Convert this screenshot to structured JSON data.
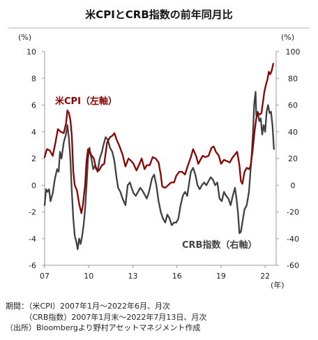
{
  "chart_data": {
    "type": "line",
    "title": "米CPIとCRB指数の前年同月比",
    "left_axis": {
      "unit": "(%)",
      "ylim": [
        -6,
        10
      ],
      "ticks": [
        "10",
        "8",
        "6",
        "4",
        "2",
        "0",
        "-2",
        "-4",
        "-6"
      ]
    },
    "right_axis": {
      "unit": "(%)",
      "ylim": [
        -60,
        100
      ],
      "ticks": [
        "100",
        "80",
        "60",
        "40",
        "20",
        "0",
        "-20",
        "-40",
        "-60"
      ]
    },
    "x_axis": {
      "ticks": [
        "07",
        "10",
        "13",
        "16",
        "19",
        "22"
      ],
      "unit": "(年)",
      "xlim": [
        2007.0,
        2022.75
      ]
    },
    "series": [
      {
        "name": "米CPI（左軸）",
        "axis": "left",
        "color": "#8b0000",
        "points": [
          [
            2007.0,
            2.1
          ],
          [
            2007.15,
            2.7
          ],
          [
            2007.35,
            2.6
          ],
          [
            2007.55,
            2.2
          ],
          [
            2007.7,
            3.0
          ],
          [
            2007.9,
            4.2
          ],
          [
            2008.1,
            4.0
          ],
          [
            2008.3,
            3.9
          ],
          [
            2008.45,
            4.6
          ],
          [
            2008.55,
            5.6
          ],
          [
            2008.65,
            5.4
          ],
          [
            2008.75,
            4.9
          ],
          [
            2008.85,
            3.7
          ],
          [
            2008.95,
            1.0
          ],
          [
            2009.05,
            0.0
          ],
          [
            2009.2,
            -0.4
          ],
          [
            2009.35,
            -1.4
          ],
          [
            2009.5,
            -2.1
          ],
          [
            2009.6,
            -1.5
          ],
          [
            2009.75,
            0.0
          ],
          [
            2009.85,
            1.8
          ],
          [
            2009.95,
            2.7
          ],
          [
            2010.15,
            2.3
          ],
          [
            2010.35,
            2.0
          ],
          [
            2010.5,
            1.2
          ],
          [
            2010.7,
            1.1
          ],
          [
            2010.9,
            1.5
          ],
          [
            2011.05,
            1.6
          ],
          [
            2011.25,
            3.2
          ],
          [
            2011.45,
            3.6
          ],
          [
            2011.6,
            3.7
          ],
          [
            2011.75,
            3.9
          ],
          [
            2011.9,
            3.4
          ],
          [
            2012.1,
            2.9
          ],
          [
            2012.3,
            2.3
          ],
          [
            2012.5,
            1.4
          ],
          [
            2012.7,
            2.0
          ],
          [
            2012.9,
            1.8
          ],
          [
            2013.05,
            1.6
          ],
          [
            2013.25,
            1.1
          ],
          [
            2013.45,
            1.6
          ],
          [
            2013.6,
            2.0
          ],
          [
            2013.8,
            1.2
          ],
          [
            2013.95,
            1.5
          ],
          [
            2014.15,
            1.5
          ],
          [
            2014.35,
            2.1
          ],
          [
            2014.55,
            2.0
          ],
          [
            2014.75,
            1.7
          ],
          [
            2014.9,
            0.8
          ],
          [
            2015.0,
            -0.1
          ],
          [
            2015.2,
            -0.2
          ],
          [
            2015.4,
            0.0
          ],
          [
            2015.6,
            0.2
          ],
          [
            2015.8,
            0.2
          ],
          [
            2015.95,
            0.7
          ],
          [
            2016.15,
            1.0
          ],
          [
            2016.35,
            1.0
          ],
          [
            2016.55,
            0.8
          ],
          [
            2016.75,
            1.5
          ],
          [
            2016.95,
            2.1
          ],
          [
            2017.1,
            2.7
          ],
          [
            2017.3,
            2.2
          ],
          [
            2017.45,
            1.6
          ],
          [
            2017.6,
            1.9
          ],
          [
            2017.75,
            2.2
          ],
          [
            2017.95,
            2.1
          ],
          [
            2018.15,
            2.2
          ],
          [
            2018.35,
            2.8
          ],
          [
            2018.5,
            2.9
          ],
          [
            2018.65,
            2.5
          ],
          [
            2018.85,
            2.2
          ],
          [
            2019.0,
            1.6
          ],
          [
            2019.2,
            1.9
          ],
          [
            2019.4,
            1.8
          ],
          [
            2019.6,
            1.7
          ],
          [
            2019.8,
            2.1
          ],
          [
            2019.95,
            2.3
          ],
          [
            2020.1,
            2.5
          ],
          [
            2020.25,
            1.5
          ],
          [
            2020.35,
            0.3
          ],
          [
            2020.45,
            0.1
          ],
          [
            2020.6,
            1.0
          ],
          [
            2020.75,
            1.3
          ],
          [
            2020.9,
            1.2
          ],
          [
            2021.0,
            1.4
          ],
          [
            2021.15,
            2.6
          ],
          [
            2021.3,
            4.2
          ],
          [
            2021.4,
            5.0
          ],
          [
            2021.5,
            5.4
          ],
          [
            2021.65,
            5.3
          ],
          [
            2021.75,
            5.4
          ],
          [
            2021.85,
            6.2
          ],
          [
            2021.95,
            7.0
          ],
          [
            2022.05,
            7.5
          ],
          [
            2022.15,
            7.9
          ],
          [
            2022.25,
            8.5
          ],
          [
            2022.35,
            8.3
          ],
          [
            2022.45,
            8.6
          ],
          [
            2022.55,
            9.1
          ]
        ]
      },
      {
        "name": "CRB指数（右軸）",
        "axis": "right",
        "color": "#404040",
        "points": [
          [
            2007.0,
            -15
          ],
          [
            2007.1,
            -3
          ],
          [
            2007.2,
            -5
          ],
          [
            2007.3,
            -3
          ],
          [
            2007.4,
            -12
          ],
          [
            2007.55,
            -6
          ],
          [
            2007.7,
            5
          ],
          [
            2007.85,
            12
          ],
          [
            2007.95,
            10
          ],
          [
            2008.05,
            25
          ],
          [
            2008.15,
            20
          ],
          [
            2008.3,
            32
          ],
          [
            2008.45,
            38
          ],
          [
            2008.55,
            45
          ],
          [
            2008.65,
            35
          ],
          [
            2008.75,
            20
          ],
          [
            2008.85,
            -5
          ],
          [
            2008.95,
            -25
          ],
          [
            2009.05,
            -38
          ],
          [
            2009.15,
            -42
          ],
          [
            2009.25,
            -48
          ],
          [
            2009.35,
            -40
          ],
          [
            2009.45,
            -44
          ],
          [
            2009.55,
            -38
          ],
          [
            2009.65,
            -30
          ],
          [
            2009.75,
            -18
          ],
          [
            2009.85,
            0
          ],
          [
            2009.95,
            20
          ],
          [
            2010.05,
            28
          ],
          [
            2010.15,
            22
          ],
          [
            2010.3,
            12
          ],
          [
            2010.45,
            15
          ],
          [
            2010.6,
            10
          ],
          [
            2010.75,
            20
          ],
          [
            2010.9,
            25
          ],
          [
            2011.0,
            30
          ],
          [
            2011.15,
            36
          ],
          [
            2011.3,
            34
          ],
          [
            2011.45,
            28
          ],
          [
            2011.6,
            25
          ],
          [
            2011.75,
            18
          ],
          [
            2011.9,
            5
          ],
          [
            2012.0,
            -2
          ],
          [
            2012.15,
            -5
          ],
          [
            2012.3,
            -10
          ],
          [
            2012.5,
            -15
          ],
          [
            2012.65,
            0
          ],
          [
            2012.8,
            2
          ],
          [
            2012.95,
            -3
          ],
          [
            2013.05,
            -6
          ],
          [
            2013.2,
            -8
          ],
          [
            2013.35,
            -5
          ],
          [
            2013.5,
            -2
          ],
          [
            2013.65,
            -4
          ],
          [
            2013.8,
            -7
          ],
          [
            2013.95,
            -10
          ],
          [
            2014.1,
            -5
          ],
          [
            2014.3,
            5
          ],
          [
            2014.45,
            8
          ],
          [
            2014.6,
            0
          ],
          [
            2014.75,
            -12
          ],
          [
            2014.9,
            -20
          ],
          [
            2015.05,
            -25
          ],
          [
            2015.2,
            -28
          ],
          [
            2015.35,
            -22
          ],
          [
            2015.5,
            -25
          ],
          [
            2015.65,
            -30
          ],
          [
            2015.8,
            -28
          ],
          [
            2015.95,
            -28
          ],
          [
            2016.1,
            -25
          ],
          [
            2016.25,
            -15
          ],
          [
            2016.4,
            -8
          ],
          [
            2016.55,
            -5
          ],
          [
            2016.7,
            -8
          ],
          [
            2016.85,
            3
          ],
          [
            2016.95,
            10
          ],
          [
            2017.1,
            13
          ],
          [
            2017.25,
            8
          ],
          [
            2017.4,
            0
          ],
          [
            2017.55,
            -3
          ],
          [
            2017.7,
            0
          ],
          [
            2017.85,
            2
          ],
          [
            2018.0,
            0
          ],
          [
            2018.15,
            3
          ],
          [
            2018.3,
            6
          ],
          [
            2018.45,
            4
          ],
          [
            2018.6,
            0
          ],
          [
            2018.75,
            2
          ],
          [
            2018.9,
            -10
          ],
          [
            2019.05,
            -12
          ],
          [
            2019.2,
            -5
          ],
          [
            2019.35,
            -8
          ],
          [
            2019.5,
            -10
          ],
          [
            2019.65,
            -15
          ],
          [
            2019.8,
            -8
          ],
          [
            2019.95,
            -2
          ],
          [
            2020.05,
            -10
          ],
          [
            2020.15,
            -20
          ],
          [
            2020.25,
            -36
          ],
          [
            2020.35,
            -35
          ],
          [
            2020.45,
            -28
          ],
          [
            2020.6,
            -18
          ],
          [
            2020.75,
            -15
          ],
          [
            2020.9,
            -5
          ],
          [
            2021.0,
            10
          ],
          [
            2021.1,
            25
          ],
          [
            2021.2,
            45
          ],
          [
            2021.25,
            60
          ],
          [
            2021.35,
            70
          ],
          [
            2021.4,
            52
          ],
          [
            2021.5,
            55
          ],
          [
            2021.6,
            48
          ],
          [
            2021.7,
            50
          ],
          [
            2021.8,
            38
          ],
          [
            2021.9,
            45
          ],
          [
            2022.0,
            40
          ],
          [
            2022.1,
            55
          ],
          [
            2022.2,
            60
          ],
          [
            2022.3,
            54
          ],
          [
            2022.4,
            55
          ],
          [
            2022.5,
            45
          ],
          [
            2022.6,
            27
          ]
        ]
      }
    ]
  },
  "notes": {
    "line1": "期間：（米CPI）2007年1月～2022年6月、月次",
    "line2": "　　　（CRB指数）2007年1月末～2022年7月13日、月次",
    "line3": "（出所）Bloombergより野村アセットマネジメント作成"
  }
}
